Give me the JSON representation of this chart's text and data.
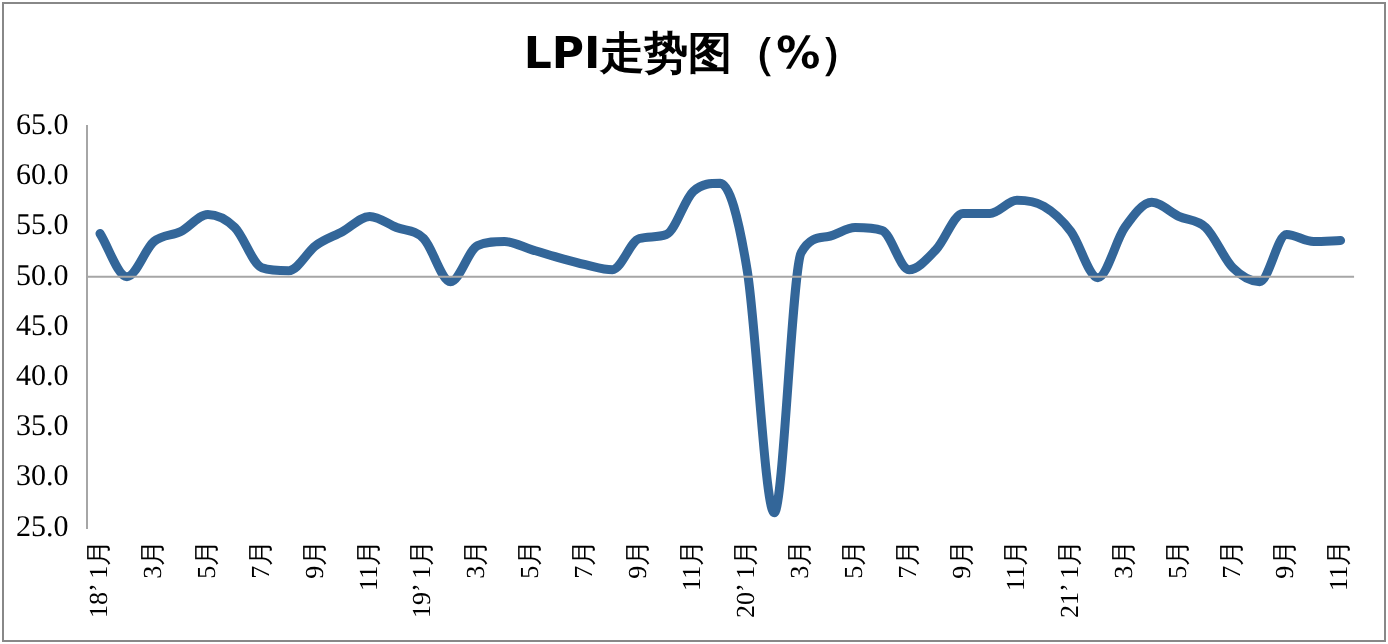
{
  "chart_data": {
    "type": "line",
    "title": "LPI走势图（%）",
    "categories": [
      "18’ 1月",
      null,
      "3月",
      null,
      "5月",
      null,
      "7月",
      null,
      "9月",
      null,
      "11月",
      null,
      "19’ 1月",
      null,
      "3月",
      null,
      "5月",
      null,
      "7月",
      null,
      "9月",
      null,
      "11月",
      null,
      "20’ 1月",
      null,
      "3月",
      null,
      "5月",
      null,
      "7月",
      null,
      "9月",
      null,
      "11月",
      null,
      "21’ 1月",
      null,
      "3月",
      null,
      "5月",
      null,
      "7月",
      null,
      "9月",
      null,
      "11月"
    ],
    "series": [
      {
        "color": "#336699",
        "values": [
          54.3,
          50.0,
          53.5,
          54.5,
          56.2,
          54.9,
          50.9,
          50.6,
          53.1,
          54.5,
          56.0,
          54.9,
          53.8,
          49.5,
          53.1,
          53.5,
          52.7,
          51.9,
          51.2,
          50.7,
          53.8,
          54.2,
          58.5,
          59.3,
          50.6,
          26.5,
          52.4,
          54.0,
          54.9,
          54.6,
          50.7,
          52.7,
          56.3,
          56.3,
          57.6,
          57.0,
          54.5,
          49.9,
          54.9,
          57.4,
          56.0,
          54.9,
          50.9,
          49.5,
          54.2,
          53.5,
          53.6
        ]
      }
    ],
    "ylim": [
      25,
      65
    ],
    "yticks": [
      {
        "value": 25,
        "label": "25.0"
      },
      {
        "value": 30,
        "label": "30.0"
      },
      {
        "value": 35,
        "label": "35.0"
      },
      {
        "value": 40,
        "label": "40.0"
      },
      {
        "value": 45,
        "label": "45.0"
      },
      {
        "value": 50,
        "label": "50.0"
      },
      {
        "value": 55,
        "label": "55.0"
      },
      {
        "value": 60,
        "label": "60.0"
      },
      {
        "value": 65,
        "label": "65.0"
      }
    ],
    "ref_lines": [
      {
        "axis": "y",
        "value": 50,
        "color": "#a6a6a6"
      }
    ],
    "grid": false,
    "legend": false,
    "marker": "none",
    "line_style": "solid"
  }
}
